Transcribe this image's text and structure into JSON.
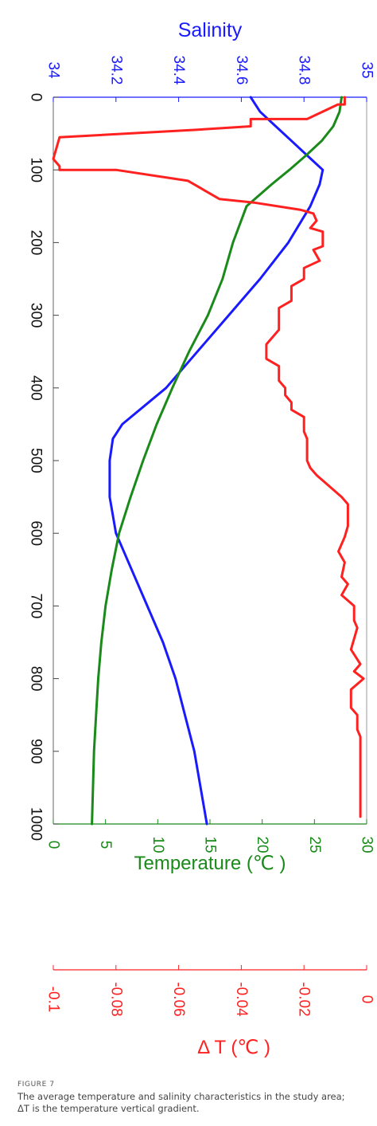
{
  "chart_data": {
    "type": "line",
    "orientation": "rotated 90 degrees clockwise (depth axis runs down the page; all tick labels rotated)",
    "depth_axis": {
      "range": [
        0,
        1000
      ],
      "ticks": [
        "0",
        "100",
        "200",
        "300",
        "400",
        "500",
        "600",
        "700",
        "800",
        "900",
        "1000"
      ]
    },
    "salinity_axis": {
      "title": "Salinity",
      "range": [
        34,
        35
      ],
      "ticks": [
        "34",
        "34.2",
        "34.4",
        "34.6",
        "34.8",
        "35"
      ],
      "color": "#1a1aff"
    },
    "temperature_axis": {
      "title": "Temperature (℃ )",
      "range": [
        0,
        30
      ],
      "ticks": [
        "0",
        "5",
        "10",
        "15",
        "20",
        "25",
        "30"
      ],
      "color": "#1a8a1a"
    },
    "gradient_axis": {
      "title": "Δ T (℃ )",
      "range": [
        -0.1,
        0
      ],
      "ticks": [
        "-0.1",
        "-0.08",
        "-0.06",
        "-0.04",
        "-0.02",
        "0"
      ],
      "color": "#ff2020"
    },
    "grid": false,
    "series": [
      {
        "axis": "salinity",
        "color": "#1a1aff",
        "points": [
          [
            0,
            34.63
          ],
          [
            20,
            34.66
          ],
          [
            40,
            34.71
          ],
          [
            60,
            34.76
          ],
          [
            80,
            34.81
          ],
          [
            100,
            34.86
          ],
          [
            120,
            34.85
          ],
          [
            150,
            34.82
          ],
          [
            200,
            34.75
          ],
          [
            250,
            34.66
          ],
          [
            300,
            34.56
          ],
          [
            350,
            34.46
          ],
          [
            400,
            34.36
          ],
          [
            450,
            34.22
          ],
          [
            470,
            34.19
          ],
          [
            500,
            34.18
          ],
          [
            550,
            34.18
          ],
          [
            600,
            34.2
          ],
          [
            650,
            34.25
          ],
          [
            700,
            34.3
          ],
          [
            750,
            34.35
          ],
          [
            800,
            34.39
          ],
          [
            850,
            34.42
          ],
          [
            900,
            34.45
          ],
          [
            950,
            34.47
          ],
          [
            1000,
            34.49
          ]
        ]
      },
      {
        "axis": "temperature",
        "color": "#1a8a1a",
        "points": [
          [
            0,
            27.6
          ],
          [
            20,
            27.4
          ],
          [
            40,
            26.8
          ],
          [
            60,
            25.7
          ],
          [
            80,
            24.2
          ],
          [
            100,
            22.6
          ],
          [
            120,
            20.9
          ],
          [
            150,
            18.5
          ],
          [
            200,
            17.2
          ],
          [
            250,
            16.2
          ],
          [
            300,
            14.8
          ],
          [
            350,
            13.0
          ],
          [
            400,
            11.4
          ],
          [
            450,
            9.9
          ],
          [
            500,
            8.6
          ],
          [
            550,
            7.4
          ],
          [
            600,
            6.3
          ],
          [
            650,
            5.6
          ],
          [
            700,
            5.0
          ],
          [
            750,
            4.6
          ],
          [
            800,
            4.3
          ],
          [
            850,
            4.1
          ],
          [
            900,
            3.9
          ],
          [
            950,
            3.8
          ],
          [
            1000,
            3.7
          ]
        ]
      },
      {
        "axis": "gradient",
        "color": "#ff2020",
        "points": [
          [
            0,
            -0.007
          ],
          [
            10,
            -0.007
          ],
          [
            10,
            -0.0092
          ],
          [
            30,
            -0.019
          ],
          [
            30,
            -0.037
          ],
          [
            40,
            -0.037
          ],
          [
            45,
            -0.055
          ],
          [
            55,
            -0.098
          ],
          [
            85,
            -0.1
          ],
          [
            95,
            -0.098
          ],
          [
            100,
            -0.098
          ],
          [
            100,
            -0.08
          ],
          [
            115,
            -0.057
          ],
          [
            140,
            -0.047
          ],
          [
            145,
            -0.036
          ],
          [
            155,
            -0.021
          ],
          [
            160,
            -0.017
          ],
          [
            170,
            -0.016
          ],
          [
            180,
            -0.018
          ],
          [
            185,
            -0.014
          ],
          [
            205,
            -0.014
          ],
          [
            210,
            -0.017
          ],
          [
            225,
            -0.015
          ],
          [
            235,
            -0.02
          ],
          [
            250,
            -0.02
          ],
          [
            260,
            -0.024
          ],
          [
            280,
            -0.024
          ],
          [
            290,
            -0.028
          ],
          [
            320,
            -0.028
          ],
          [
            340,
            -0.032
          ],
          [
            360,
            -0.032
          ],
          [
            370,
            -0.028
          ],
          [
            390,
            -0.028
          ],
          [
            400,
            -0.026
          ],
          [
            410,
            -0.026
          ],
          [
            420,
            -0.024
          ],
          [
            430,
            -0.024
          ],
          [
            440,
            -0.02
          ],
          [
            460,
            -0.02
          ],
          [
            470,
            -0.019
          ],
          [
            500,
            -0.019
          ],
          [
            510,
            -0.018
          ],
          [
            520,
            -0.016
          ],
          [
            535,
            -0.012
          ],
          [
            550,
            -0.008
          ],
          [
            560,
            -0.006
          ],
          [
            590,
            -0.006
          ],
          [
            605,
            -0.007
          ],
          [
            625,
            -0.009
          ],
          [
            640,
            -0.007
          ],
          [
            660,
            -0.008
          ],
          [
            670,
            -0.006
          ],
          [
            685,
            -0.008
          ],
          [
            700,
            -0.004
          ],
          [
            720,
            -0.004
          ],
          [
            730,
            -0.003
          ],
          [
            760,
            -0.005
          ],
          [
            780,
            -0.002
          ],
          [
            790,
            -0.004
          ],
          [
            800,
            -0.001
          ],
          [
            815,
            -0.005
          ],
          [
            840,
            -0.005
          ],
          [
            850,
            -0.003
          ],
          [
            870,
            -0.003
          ],
          [
            880,
            -0.002
          ],
          [
            900,
            -0.002
          ],
          [
            950,
            -0.002
          ],
          [
            960,
            -0.002
          ],
          [
            990,
            -0.002
          ]
        ]
      }
    ]
  },
  "caption": {
    "label": "FIGURE 7",
    "line1": "The average temperature and salinity characteristics in the study area;",
    "line2": "ΔT is the temperature vertical gradient."
  }
}
